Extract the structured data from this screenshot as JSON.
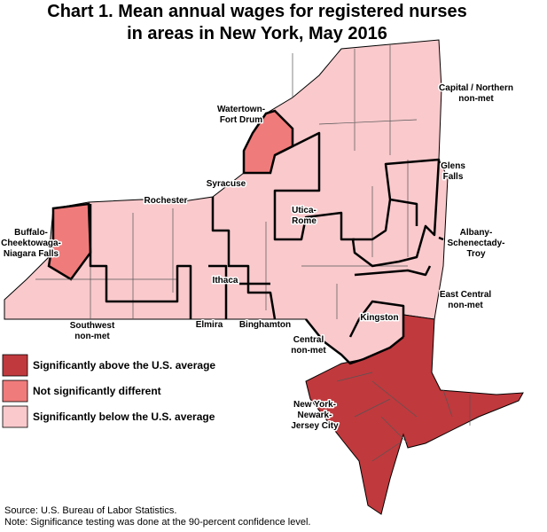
{
  "title": [
    "Chart 1. Mean annual wages for registered nurses",
    "in areas in New York, May 2016"
  ],
  "areas": [
    [
      "Watertown-",
      "Fort Drum"
    ],
    [
      "Capital / Northern",
      "non-met"
    ],
    [
      "Syracuse"
    ],
    [
      "Rochester"
    ],
    [
      "Glens",
      "Falls"
    ],
    [
      "Utica-",
      "Rome"
    ],
    [
      "Buffalo-",
      "Cheektowaga-",
      "Niagara Falls"
    ],
    [
      "Albany-",
      "Schenectady-",
      "Troy"
    ],
    [
      "Ithaca"
    ],
    [
      "East Central",
      "non-met"
    ],
    [
      "Kingston"
    ],
    [
      "Southwest",
      "non-met"
    ],
    [
      "Elmira"
    ],
    [
      "Binghamton"
    ],
    [
      "Central",
      "non-met"
    ],
    [
      "New York-",
      "Newark-",
      "Jersey City"
    ]
  ],
  "legend": [
    "Significantly above the U.S. average",
    "Not significantly different",
    "Significantly below the U.S. average"
  ],
  "source": "Source: U.S. Bureau of Labor Statistics.",
  "note": "Note: Significance testing was done at the 90-percent confidence level."
}
